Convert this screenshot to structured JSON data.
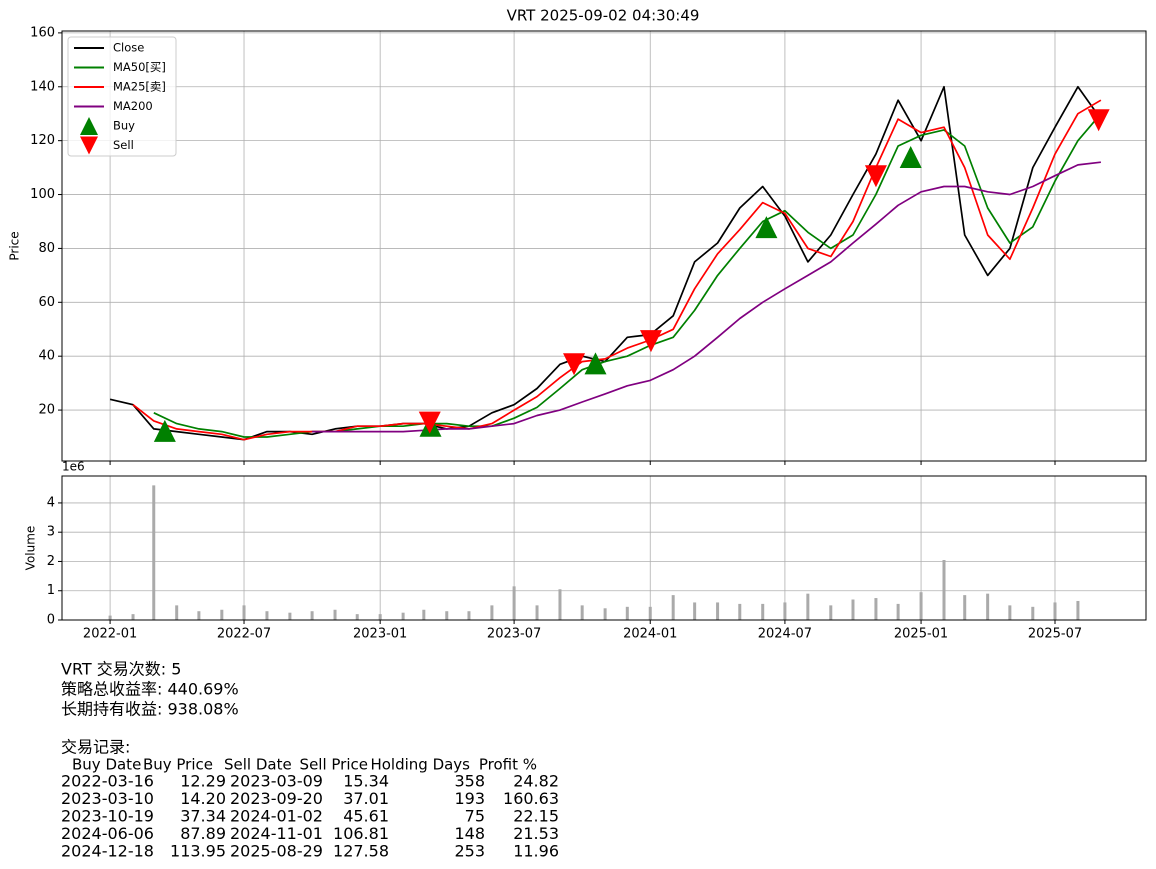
{
  "chart_data": [
    {
      "type": "line",
      "title": "VRT 2025-09-02 04:30:49",
      "ylabel": "Price",
      "xlim": [
        "2021-10-28",
        "2025-11-01"
      ],
      "xticks": [
        "2022-01",
        "2022-07",
        "2023-01",
        "2023-07",
        "2024-01",
        "2024-07",
        "2025-01",
        "2025-07"
      ],
      "ylim": [
        1.1,
        160.7
      ],
      "yticks": [
        20,
        40,
        60,
        80,
        100,
        120,
        140,
        160
      ],
      "grid": true,
      "legend": "upper left",
      "x": [
        "2022-01",
        "2022-02",
        "2022-03",
        "2022-04",
        "2022-05",
        "2022-06",
        "2022-07",
        "2022-08",
        "2022-09",
        "2022-10",
        "2022-11",
        "2022-12",
        "2023-01",
        "2023-02",
        "2023-03",
        "2023-04",
        "2023-05",
        "2023-06",
        "2023-07",
        "2023-08",
        "2023-09",
        "2023-10",
        "2023-11",
        "2023-12",
        "2024-01",
        "2024-02",
        "2024-03",
        "2024-04",
        "2024-05",
        "2024-06",
        "2024-07",
        "2024-08",
        "2024-09",
        "2024-10",
        "2024-11",
        "2024-12",
        "2025-01",
        "2025-02",
        "2025-03",
        "2025-04",
        "2025-05",
        "2025-06",
        "2025-07",
        "2025-08",
        "2025-09"
      ],
      "series": [
        {
          "name": "Close",
          "color": "#000000",
          "values": [
            24,
            22,
            13,
            12,
            11,
            10,
            9,
            12,
            12,
            11,
            13,
            14,
            14,
            15,
            15,
            13,
            14,
            19,
            22,
            28,
            37,
            40,
            38,
            47,
            48,
            55,
            75,
            82,
            95,
            103,
            92,
            75,
            85,
            100,
            115,
            135,
            120,
            140,
            85,
            70,
            80,
            110,
            125,
            140,
            128
          ]
        },
        {
          "name": "MA50[买]",
          "color": "#008000",
          "values": [
            null,
            null,
            19,
            15,
            13,
            12,
            10,
            10,
            11,
            12,
            12,
            13,
            14,
            14,
            15,
            15,
            14,
            14,
            17,
            21,
            28,
            35,
            38,
            40,
            44,
            47,
            57,
            70,
            80,
            90,
            94,
            86,
            80,
            85,
            100,
            118,
            122,
            124,
            118,
            95,
            82,
            88,
            105,
            120,
            130
          ]
        },
        {
          "name": "MA25[卖]",
          "color": "#ff0000",
          "values": [
            null,
            22,
            16,
            13,
            12,
            11,
            9,
            11,
            12,
            12,
            12,
            14,
            14,
            15,
            15,
            14,
            13,
            15,
            20,
            25,
            32,
            38,
            39,
            43,
            46,
            50,
            65,
            78,
            87,
            97,
            93,
            80,
            77,
            90,
            110,
            128,
            123,
            125,
            110,
            85,
            76,
            95,
            115,
            130,
            135
          ]
        },
        {
          "name": "MA200",
          "color": "#800080",
          "values": [
            null,
            null,
            null,
            null,
            null,
            null,
            null,
            null,
            null,
            12,
            12,
            12,
            12,
            12,
            12.5,
            13,
            13,
            14,
            15,
            18,
            20,
            23,
            26,
            29,
            31,
            35,
            40,
            47,
            54,
            60,
            65,
            70,
            75,
            82,
            89,
            96,
            101,
            103,
            103,
            101,
            100,
            103,
            107,
            111,
            112
          ]
        },
        {
          "name": "Buy",
          "color": "#008000",
          "marker": "up"
        },
        {
          "name": "Sell",
          "color": "#ff0000",
          "marker": "down"
        }
      ]
    },
    {
      "type": "bar",
      "ylabel": "Volume",
      "offset_text": "1e6",
      "color": "#aaaaaa",
      "xlim": [
        "2021-10-28",
        "2025-11-01"
      ],
      "xticks": [
        "2022-01",
        "2022-07",
        "2023-01",
        "2023-07",
        "2024-01",
        "2024-07",
        "2025-01",
        "2025-07"
      ],
      "ylim": [
        0,
        4.92
      ],
      "yticks": [
        0,
        1,
        2,
        3,
        4
      ],
      "grid": true,
      "x": [
        "2022-01",
        "2022-02",
        "2022-03",
        "2022-04",
        "2022-05",
        "2022-06",
        "2022-07",
        "2022-08",
        "2022-09",
        "2022-10",
        "2022-11",
        "2022-12",
        "2023-01",
        "2023-02",
        "2023-03",
        "2023-04",
        "2023-05",
        "2023-06",
        "2023-07",
        "2023-08",
        "2023-09",
        "2023-10",
        "2023-11",
        "2023-12",
        "2024-01",
        "2024-02",
        "2024-03",
        "2024-04",
        "2024-05",
        "2024-06",
        "2024-07",
        "2024-08",
        "2024-09",
        "2024-10",
        "2024-11",
        "2024-12",
        "2025-01",
        "2025-02",
        "2025-03",
        "2025-04",
        "2025-05",
        "2025-06",
        "2025-07",
        "2025-08"
      ],
      "values": [
        0.15,
        0.2,
        4.6,
        0.5,
        0.3,
        0.35,
        0.5,
        0.3,
        0.25,
        0.3,
        0.35,
        0.2,
        0.2,
        0.25,
        0.35,
        0.3,
        0.3,
        0.5,
        1.15,
        0.5,
        1.05,
        0.5,
        0.4,
        0.45,
        0.45,
        0.85,
        0.6,
        0.6,
        0.55,
        0.55,
        0.6,
        0.9,
        0.5,
        0.7,
        0.75,
        0.55,
        0.95,
        2.05,
        0.85,
        0.9,
        0.5,
        0.45,
        0.6,
        0.65
      ]
    }
  ],
  "report": {
    "summary": [
      "VRT 交易次数: 5",
      "策略总收益率: 440.69%",
      "长期持有收益: 938.08%"
    ],
    "trades_title": "交易记录:",
    "trades": {
      "columns": [
        "Buy Date",
        "Buy Price",
        "Sell Date",
        "Sell Price",
        "Holding Days",
        "Profit %"
      ],
      "rows": [
        [
          "2022-03-16",
          "12.29",
          "2023-03-09",
          "15.34",
          "358",
          "24.82"
        ],
        [
          "2023-03-10",
          "14.20",
          "2023-09-20",
          "37.01",
          "193",
          "160.63"
        ],
        [
          "2023-10-19",
          "37.34",
          "2024-01-02",
          "45.61",
          "75",
          "22.15"
        ],
        [
          "2024-06-06",
          "87.89",
          "2024-11-01",
          "106.81",
          "148",
          "21.53"
        ],
        [
          "2024-12-18",
          "113.95",
          "2025-08-29",
          "127.58",
          "253",
          "11.96"
        ]
      ]
    }
  }
}
